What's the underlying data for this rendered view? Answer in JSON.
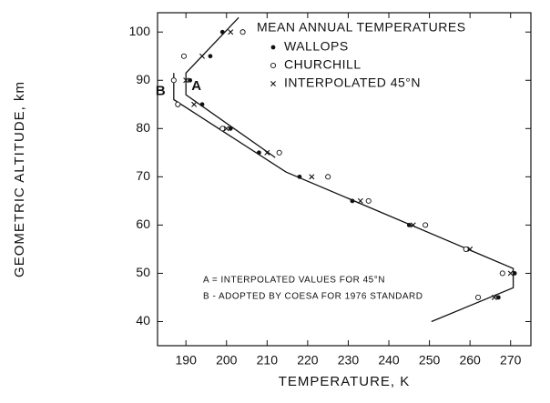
{
  "chart_data": {
    "type": "scatter",
    "xlabel": "TEMPERATURE, K",
    "ylabel": "GEOMETRIC ALTITUDE, km",
    "legend_title": "MEAN ANNUAL TEMPERATURES",
    "xlim": [
      183,
      275
    ],
    "ylim": [
      35,
      104
    ],
    "xticks": [
      190,
      200,
      210,
      220,
      230,
      240,
      250,
      260,
      270
    ],
    "yticks": [
      40,
      50,
      60,
      70,
      80,
      90,
      100
    ],
    "color": "#111111",
    "series": [
      {
        "name": "WALLOPS",
        "marker": "filled",
        "x": [
          199,
          196,
          191,
          194,
          201,
          208,
          218,
          231,
          245,
          259,
          271,
          267
        ],
        "values": [
          100,
          95,
          90,
          85,
          80,
          75,
          70,
          65,
          60,
          55,
          50,
          45
        ]
      },
      {
        "name": "CHURCHILL",
        "marker": "open",
        "x": [
          204,
          189.5,
          187,
          188,
          199,
          213,
          225,
          235,
          249,
          259,
          268,
          262
        ],
        "values": [
          100,
          95,
          90,
          85,
          80,
          75,
          70,
          65,
          60,
          55,
          50,
          45
        ]
      },
      {
        "name": "INTERPOLATED 45°N",
        "marker": "cross",
        "x": [
          201,
          194,
          190,
          192,
          200,
          210,
          221,
          233,
          246,
          260,
          270,
          266
        ],
        "values": [
          100,
          95,
          90,
          85,
          80,
          75,
          70,
          65,
          60,
          55,
          50,
          45
        ]
      }
    ],
    "lines": [
      {
        "name": "A",
        "x": [
          203,
          190,
          190,
          212
        ],
        "values": [
          103,
          91.5,
          87,
          74
        ]
      },
      {
        "name": "B",
        "x": [
          187,
          187,
          214.65,
          270.65,
          270.65,
          250.5
        ],
        "values": [
          91.5,
          86,
          71,
          51,
          47,
          40
        ]
      }
    ],
    "notes": [
      "A = INTERPOLATED VALUES FOR 45°N",
      "B - ADOPTED BY COESA FOR 1976 STANDARD"
    ]
  }
}
